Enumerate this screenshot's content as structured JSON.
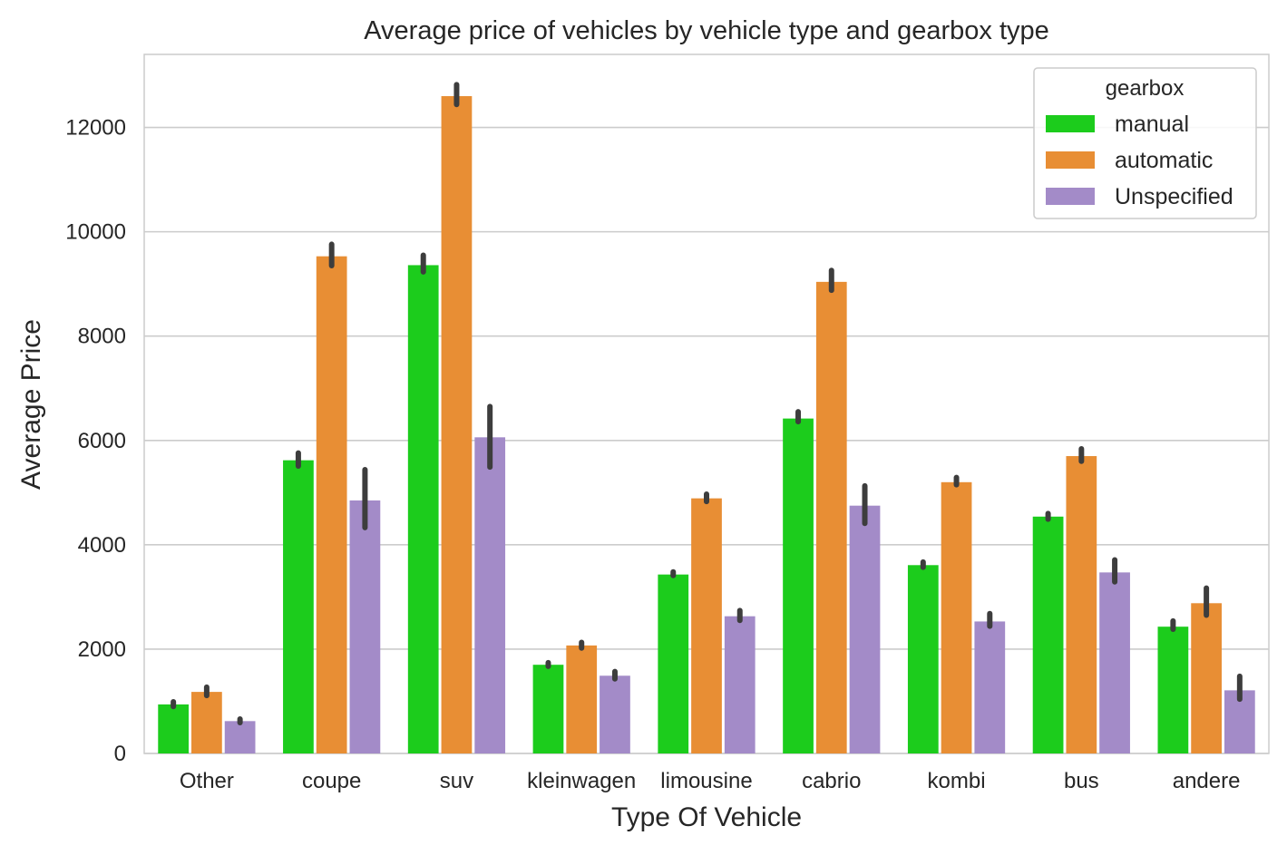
{
  "chart_data": {
    "type": "bar",
    "title": "Average price of vehicles by vehicle type and gearbox type",
    "xlabel": "Type Of Vehicle",
    "ylabel": "Average Price",
    "categories": [
      "Other",
      "coupe",
      "suv",
      "kleinwagen",
      "limousine",
      "cabrio",
      "kombi",
      "bus",
      "andere"
    ],
    "ylim": [
      0,
      13400
    ],
    "yticks": [
      0,
      2000,
      4000,
      6000,
      8000,
      10000,
      12000
    ],
    "ytick_labels": [
      "0",
      "2000",
      "4000",
      "6000",
      "8000",
      "10000",
      "12000"
    ],
    "grid": true,
    "legend": {
      "title": "gearbox",
      "position": "top-right"
    },
    "series": [
      {
        "name": "manual",
        "color": "#1ccc1c",
        "values": [
          940,
          5620,
          9360,
          1700,
          3430,
          6420,
          3610,
          4540,
          2430
        ],
        "error": [
          [
            900,
            990
          ],
          [
            5510,
            5760
          ],
          [
            9230,
            9550
          ],
          [
            1670,
            1740
          ],
          [
            3410,
            3480
          ],
          [
            6360,
            6550
          ],
          [
            3570,
            3670
          ],
          [
            4490,
            4600
          ],
          [
            2380,
            2540
          ]
        ]
      },
      {
        "name": "automatic",
        "color": "#e88e34",
        "values": [
          1180,
          9530,
          12600,
          2070,
          4890,
          9040,
          5200,
          5700,
          2880
        ],
        "error": [
          [
            1110,
            1270
          ],
          [
            9350,
            9760
          ],
          [
            12440,
            12820
          ],
          [
            2020,
            2130
          ],
          [
            4830,
            4970
          ],
          [
            8880,
            9260
          ],
          [
            5150,
            5290
          ],
          [
            5600,
            5840
          ],
          [
            2650,
            3170
          ]
        ]
      },
      {
        "name": "Unspecified",
        "color": "#a38bc8",
        "values": [
          620,
          4850,
          6060,
          1490,
          2630,
          4750,
          2530,
          3470,
          1210
        ],
        "error": [
          [
            590,
            660
          ],
          [
            4330,
            5440
          ],
          [
            5490,
            6650
          ],
          [
            1430,
            1570
          ],
          [
            2550,
            2740
          ],
          [
            4410,
            5130
          ],
          [
            2440,
            2680
          ],
          [
            3290,
            3710
          ],
          [
            1040,
            1480
          ]
        ]
      }
    ]
  }
}
